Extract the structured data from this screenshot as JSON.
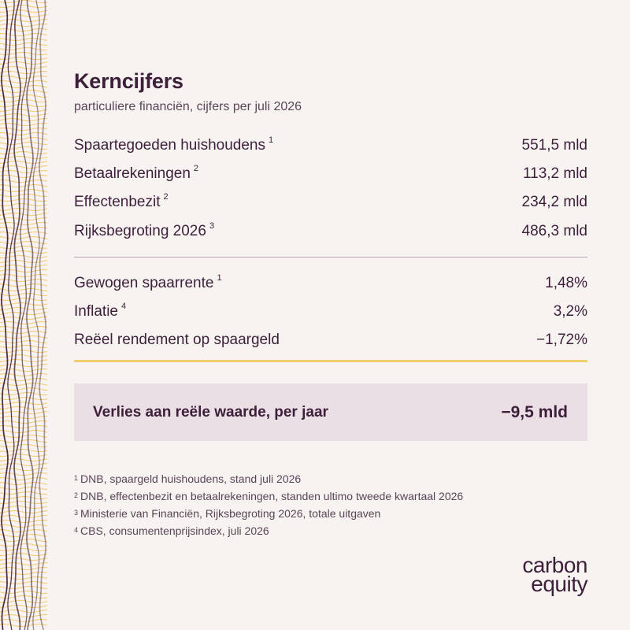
{
  "title": "Kerncijfers",
  "subtitle": "particuliere financiën, cijfers per juli 2026",
  "group1": [
    {
      "label": "Spaartegoeden huishoudens",
      "ref": "1",
      "value": "551,5 mld"
    },
    {
      "label": "Betaalrekeningen",
      "ref": "2",
      "value": "113,2 mld"
    },
    {
      "label": "Effectenbezit",
      "ref": "2",
      "value": "234,2 mld"
    },
    {
      "label": "Rijksbegroting 2026",
      "ref": "3",
      "value": "486,3 mld"
    }
  ],
  "group2": [
    {
      "label": "Gewogen spaarrente",
      "ref": "1",
      "value": "1,48%"
    },
    {
      "label": "Inflatie",
      "ref": "4",
      "value": "3,2%"
    },
    {
      "label": "Reëel rendement op spaargeld",
      "ref": "",
      "value": "−1,72%"
    }
  ],
  "summary": {
    "label": "Verlies aan reële waarde, per jaar",
    "value": "−9,5 mld"
  },
  "footnotes": [
    {
      "ref": "1",
      "text": "DNB, spaargeld huishoudens, stand juli 2026"
    },
    {
      "ref": "2",
      "text": "DNB, effectenbezit en betaalrekeningen, standen ultimo tweede kwartaal 2026"
    },
    {
      "ref": "3",
      "text": "Ministerie van Financiën, Rijksbegroting 2026, totale uitgaven"
    },
    {
      "ref": "4",
      "text": "CBS, consumentenprijsindex, juli 2026"
    }
  ],
  "logo": {
    "line1": "carbon",
    "line2": "equity"
  },
  "colors": {
    "background": "#f6f3f1",
    "text": "#3d1f3a",
    "accent": "#f2cf6e",
    "summary_bg": "#eadfe5"
  }
}
